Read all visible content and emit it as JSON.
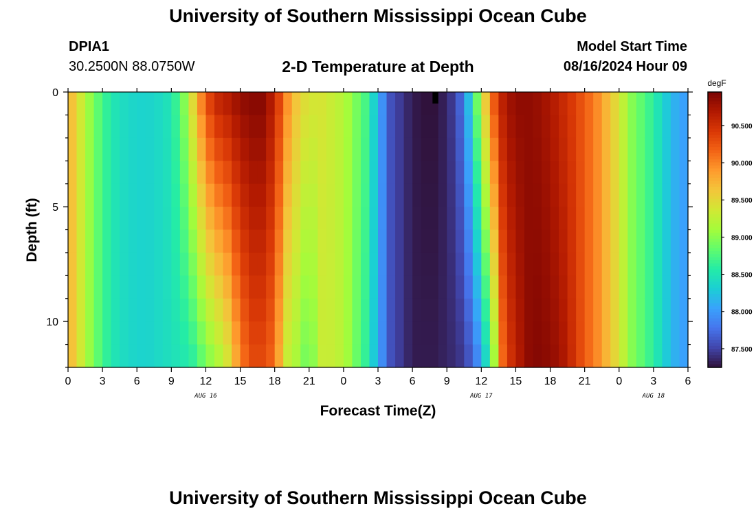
{
  "header": {
    "title": "University of Southern Mississippi Ocean Cube",
    "station_id": "DPIA1",
    "station_coords": "30.2500N  88.0750W",
    "chart_title": "2-D Temperature at Depth",
    "model_start_label": "Model Start Time",
    "model_start_value": "08/16/2024 Hour 09"
  },
  "footer": {
    "title": "University of Southern Mississippi Ocean Cube"
  },
  "chart_data": {
    "type": "heatmap",
    "title": "2-D Temperature at Depth",
    "xlabel": "Forecast Time(Z)",
    "ylabel": "Depth (ft)",
    "x_ticks": [
      "0",
      "3",
      "6",
      "9",
      "12",
      "15",
      "18",
      "21",
      "0",
      "3",
      "6",
      "9",
      "12",
      "15",
      "18",
      "21",
      "0",
      "3",
      "6"
    ],
    "x_range_hours": [
      0,
      54
    ],
    "date_labels": [
      {
        "text": "AUG 16",
        "hour": 12
      },
      {
        "text": "AUG 17",
        "hour": 36
      },
      {
        "text": "AUG 18",
        "hour": 51
      }
    ],
    "y_ticks": [
      0,
      5,
      10
    ],
    "y_range": [
      0,
      12
    ],
    "y_inverted": true,
    "colorbar": {
      "unit": "degF",
      "min": 87.25,
      "max": 90.95,
      "labels": [
        "90.500",
        "90.000",
        "89.500",
        "89.000",
        "88.500",
        "88.000",
        "87.500"
      ],
      "colors": [
        "#30123b",
        "#4145ab",
        "#4675ed",
        "#39a2fc",
        "#1bcfd4",
        "#24eca6",
        "#61fc6c",
        "#a4fc3b",
        "#d1e834",
        "#f3c63a",
        "#fe9b2d",
        "#f36315",
        "#d93806",
        "#b11901",
        "#7a0403"
      ]
    },
    "time_series_surface_bottom": {
      "hours": [
        0,
        1,
        2,
        3,
        4,
        5,
        6,
        7,
        8,
        9,
        10,
        11,
        12,
        13,
        14,
        15,
        16,
        17,
        18,
        19,
        20,
        21,
        22,
        23,
        24,
        26,
        28,
        30,
        31,
        32,
        33,
        34,
        35,
        36,
        37,
        38,
        39,
        40,
        41,
        42,
        43,
        44,
        45,
        46,
        47,
        48,
        49,
        50,
        51,
        52,
        53,
        54
      ],
      "surface_degF": [
        89.8,
        89.4,
        89.0,
        88.7,
        88.5,
        88.4,
        88.35,
        88.35,
        88.4,
        88.5,
        88.9,
        89.6,
        90.3,
        90.6,
        90.7,
        90.85,
        90.9,
        90.9,
        90.6,
        90.0,
        89.6,
        89.4,
        89.4,
        89.3,
        89.2,
        88.7,
        87.6,
        87.3,
        87.25,
        87.25,
        87.35,
        87.6,
        88.3,
        89.3,
        90.2,
        90.7,
        90.85,
        90.85,
        90.8,
        90.7,
        90.55,
        90.4,
        90.2,
        90.0,
        89.7,
        89.4,
        89.0,
        88.8,
        88.6,
        88.3,
        88.1,
        88.0
      ],
      "bottom_degF": [
        89.8,
        89.4,
        89.0,
        88.7,
        88.5,
        88.4,
        88.35,
        88.35,
        88.4,
        88.45,
        88.5,
        88.6,
        88.9,
        89.1,
        89.4,
        90.0,
        90.3,
        90.3,
        90.1,
        89.3,
        89.1,
        88.8,
        89.3,
        89.3,
        89.2,
        88.6,
        87.6,
        87.3,
        87.3,
        87.3,
        87.35,
        87.4,
        87.6,
        88.0,
        88.9,
        90.3,
        90.6,
        90.85,
        90.9,
        90.85,
        90.75,
        90.5,
        90.2,
        90.0,
        89.7,
        89.4,
        89.0,
        88.8,
        88.6,
        88.3,
        88.1,
        88.0
      ]
    },
    "missing_cell": {
      "hour": 32,
      "depth_ft": 0.5
    }
  }
}
